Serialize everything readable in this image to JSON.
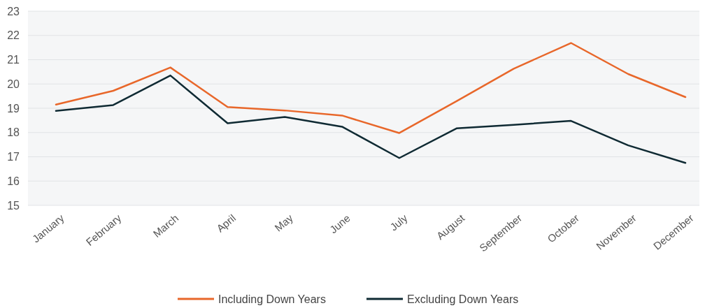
{
  "chart_data": {
    "type": "line",
    "categories": [
      "January",
      "February",
      "March",
      "April",
      "May",
      "June",
      "July",
      "August",
      "September",
      "October",
      "November",
      "December"
    ],
    "series": [
      {
        "name": "Including Down Years",
        "color": "#e8672a",
        "values": [
          19.15,
          19.72,
          20.68,
          19.05,
          18.91,
          18.7,
          17.98,
          19.29,
          20.63,
          21.69,
          20.41,
          19.46
        ]
      },
      {
        "name": "Excluding Down Years",
        "color": "#0f2a33",
        "values": [
          18.89,
          19.13,
          20.35,
          18.38,
          18.64,
          18.24,
          16.95,
          18.17,
          18.32,
          18.48,
          17.47,
          16.75
        ]
      }
    ],
    "ylim": [
      15,
      23
    ],
    "yticks": [
      15,
      16,
      17,
      18,
      19,
      20,
      21,
      22,
      23
    ],
    "grid": "y",
    "legend": "bottom",
    "marker": "none",
    "line_style": "solid"
  }
}
